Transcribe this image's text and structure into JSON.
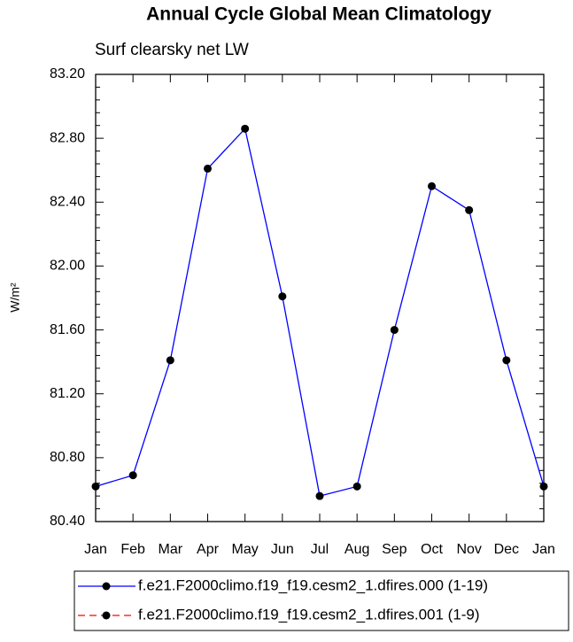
{
  "chart_data": {
    "type": "line",
    "title": "Annual Cycle Global Mean Climatology",
    "subtitle": "Surf clearsky net LW",
    "ylabel": "W/m²",
    "categories": [
      "Jan",
      "Feb",
      "Mar",
      "Apr",
      "May",
      "Jun",
      "Jul",
      "Aug",
      "Sep",
      "Oct",
      "Nov",
      "Dec",
      "Jan"
    ],
    "series": [
      {
        "name": "f.e21.F2000climo.f19_f19.cesm2_1.dfires.000 (1-19)",
        "color": "#0000ff",
        "dashed": false,
        "values": [
          80.62,
          80.69,
          81.41,
          82.61,
          82.86,
          81.81,
          80.56,
          80.62,
          81.6,
          82.5,
          82.35,
          81.41,
          80.62
        ]
      },
      {
        "name": "f.e21.F2000climo.f19_f19.cesm2_1.dfires.001 (1-9)",
        "color": "#ff0000",
        "dashed": true,
        "values": [
          null,
          null,
          null,
          null,
          null,
          null,
          null,
          null,
          null,
          null,
          null,
          null,
          null
        ]
      }
    ],
    "marker_color": "#000000",
    "ylim": [
      80.4,
      83.2
    ],
    "yticks": [
      {
        "value": 80.4,
        "label": "80.40"
      },
      {
        "value": 80.8,
        "label": "80.80"
      },
      {
        "value": 81.2,
        "label": "81.20"
      },
      {
        "value": 81.6,
        "label": "81.60"
      },
      {
        "value": 82.0,
        "label": "82.00"
      },
      {
        "value": 82.4,
        "label": "82.40"
      },
      {
        "value": 82.8,
        "label": "82.80"
      },
      {
        "value": 83.2,
        "label": "83.20"
      }
    ]
  }
}
